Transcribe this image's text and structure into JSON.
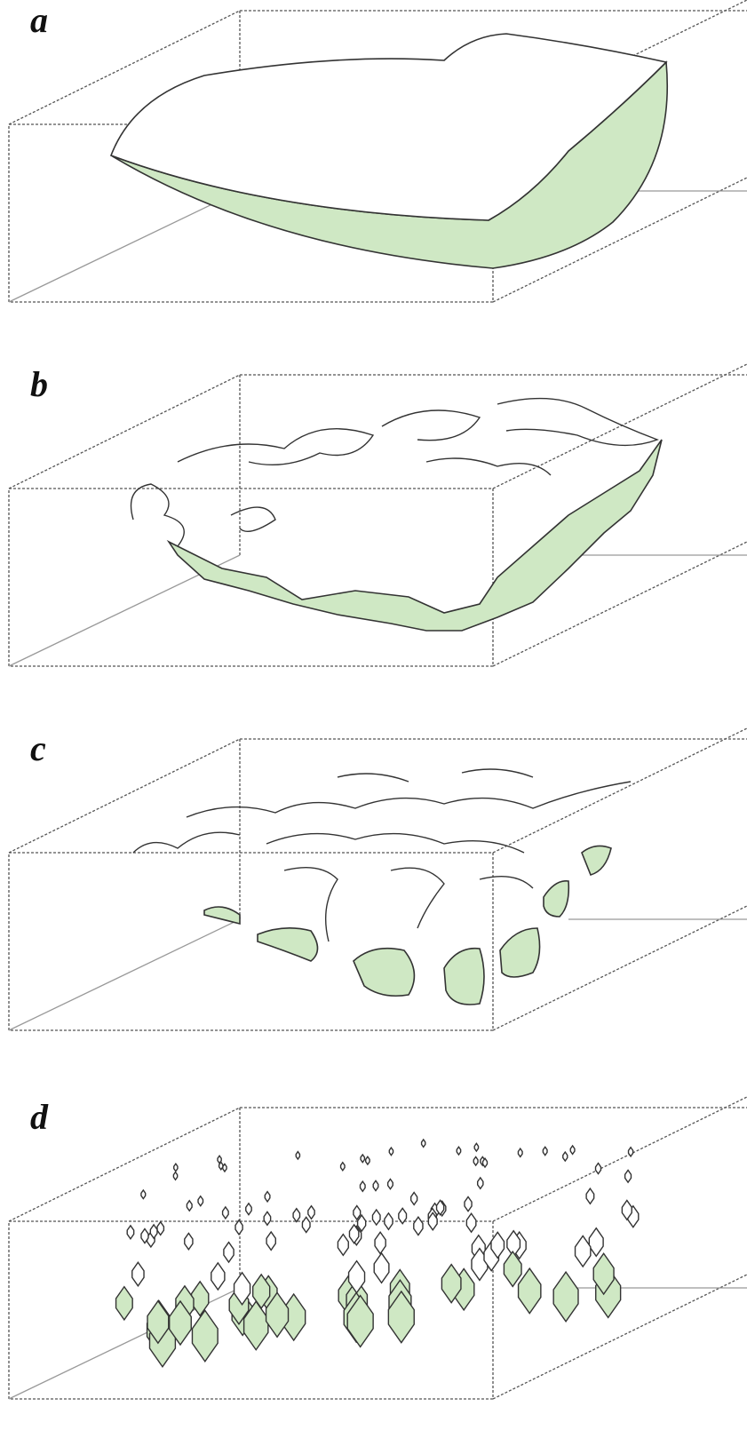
{
  "panels": [
    {
      "label": "a"
    },
    {
      "label": "b"
    },
    {
      "label": "c"
    },
    {
      "label": "d"
    }
  ]
}
